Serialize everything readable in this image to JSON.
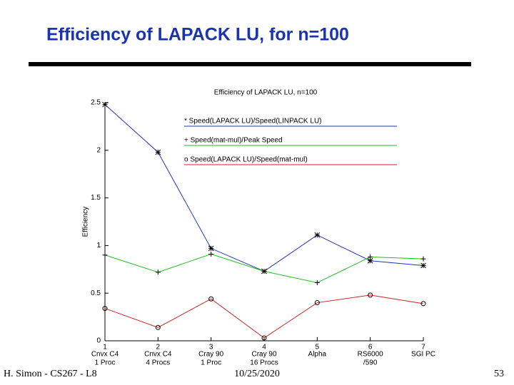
{
  "header": {
    "title": "Efficiency of LAPACK LU, for n=100"
  },
  "footer": {
    "left": "H. Simon - CS267 - L8",
    "center": "10/25/2020",
    "right": "53"
  },
  "chart_data": {
    "type": "line",
    "title": "Efficiency of LAPACK LU, n=100",
    "ylabel": "Efficiency",
    "x": [
      1,
      2,
      3,
      4,
      5,
      6,
      7
    ],
    "categories": [
      [
        "Cnvx C4",
        "1 Proc"
      ],
      [
        "Cnvx C4",
        "4 Procs"
      ],
      [
        "Cray 90",
        "1 Proc"
      ],
      [
        "Cray 90",
        "16 Procs"
      ],
      [
        "Alpha"
      ],
      [
        "RS6000",
        "/590"
      ],
      [
        "SGI PC"
      ]
    ],
    "xlim": [
      1,
      7
    ],
    "xticks": [
      1,
      2,
      3,
      4,
      5,
      6,
      7
    ],
    "ylim": [
      0,
      2.5
    ],
    "yticks": [
      0,
      0.5,
      1,
      1.5,
      2,
      2.5
    ],
    "series": [
      {
        "name": "* Speed(LAPACK LU)/Speed(LINPACK LU)",
        "color": "#2233bb",
        "marker": "star",
        "values": [
          2.48,
          1.98,
          0.97,
          0.73,
          1.11,
          0.84,
          0.79
        ]
      },
      {
        "name": "+ Speed(mat-mul)/Peak Speed",
        "color": "#22bb22",
        "marker": "plus",
        "values": [
          0.9,
          0.72,
          0.91,
          0.73,
          0.61,
          0.88,
          0.86
        ]
      },
      {
        "name": "o Speed(LAPACK LU)/Speed(mat-mul)",
        "color": "#cc2222",
        "marker": "circle",
        "values": [
          0.34,
          0.14,
          0.44,
          0.03,
          0.4,
          0.48,
          0.39
        ]
      }
    ]
  }
}
